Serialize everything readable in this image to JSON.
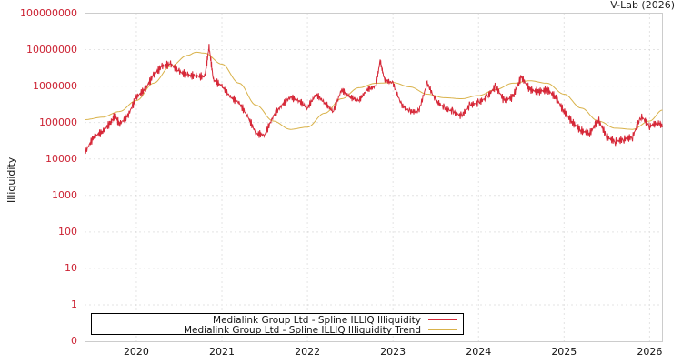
{
  "credit": "V-Lab (2026)",
  "colors": {
    "illiquidity": "#d62838",
    "trend": "#d9b24a",
    "axis": "#cccccc",
    "grid": "#c8c8c8",
    "ytick": "#cc2233"
  },
  "legend": {
    "items": [
      {
        "label": "Medialink Group Ltd - Spline ILLIQ Illiquidity",
        "color": "#d62838"
      },
      {
        "label": "Medialink Group Ltd - Spline ILLIQ Illiquidity Trend",
        "color": "#d9b24a"
      }
    ]
  },
  "chart_data": {
    "type": "line",
    "title": "",
    "xlabel": "",
    "ylabel": "Illiquidity",
    "yscale": "log",
    "ylim": [
      0,
      100000000
    ],
    "yticks": [
      "100000000",
      "10000000",
      "1000000",
      "100000",
      "10000",
      "1000",
      "100",
      "10",
      "1",
      "0"
    ],
    "xticks": [
      "2020",
      "2021",
      "2022",
      "2023",
      "2024",
      "2025",
      "2026"
    ],
    "xlim": [
      2019.4,
      2026.15
    ],
    "grid": true,
    "legend_position": "bottom-left inside",
    "series": [
      {
        "name": "Medialink Group Ltd - Spline ILLIQ Illiquidity",
        "x": [
          2019.4,
          2019.5,
          2019.6,
          2019.7,
          2019.75,
          2019.8,
          2019.9,
          2020.0,
          2020.1,
          2020.2,
          2020.3,
          2020.4,
          2020.5,
          2020.6,
          2020.7,
          2020.8,
          2020.85,
          2020.9,
          2021.0,
          2021.1,
          2021.2,
          2021.3,
          2021.4,
          2021.5,
          2021.6,
          2021.7,
          2021.8,
          2021.9,
          2022.0,
          2022.1,
          2022.2,
          2022.3,
          2022.4,
          2022.5,
          2022.6,
          2022.7,
          2022.8,
          2022.85,
          2022.9,
          2023.0,
          2023.1,
          2023.2,
          2023.3,
          2023.4,
          2023.5,
          2023.6,
          2023.7,
          2023.8,
          2023.9,
          2024.0,
          2024.1,
          2024.2,
          2024.3,
          2024.4,
          2024.5,
          2024.6,
          2024.7,
          2024.8,
          2024.9,
          2025.0,
          2025.1,
          2025.2,
          2025.3,
          2025.4,
          2025.5,
          2025.6,
          2025.7,
          2025.8,
          2025.9,
          2026.0,
          2026.1,
          2026.15
        ],
        "values": [
          15000,
          40000,
          55000,
          100000,
          160000,
          90000,
          150000,
          500000,
          800000,
          2000000,
          3500000,
          4000000,
          2500000,
          2000000,
          1900000,
          1800000,
          12000000,
          1500000,
          1000000,
          500000,
          350000,
          150000,
          50000,
          45000,
          150000,
          300000,
          500000,
          400000,
          250000,
          600000,
          350000,
          200000,
          800000,
          500000,
          400000,
          800000,
          1000000,
          5000000,
          1500000,
          1200000,
          300000,
          200000,
          200000,
          1200000,
          400000,
          250000,
          200000,
          150000,
          300000,
          350000,
          500000,
          1000000,
          400000,
          500000,
          1800000,
          800000,
          700000,
          800000,
          500000,
          200000,
          100000,
          60000,
          50000,
          120000,
          40000,
          30000,
          35000,
          40000,
          150000,
          80000,
          100000,
          80000
        ]
      },
      {
        "name": "Medialink Group Ltd - Spline ILLIQ Illiquidity Trend",
        "x": [
          2019.4,
          2019.6,
          2019.8,
          2020.0,
          2020.2,
          2020.4,
          2020.6,
          2020.7,
          2020.8,
          2021.0,
          2021.2,
          2021.4,
          2021.6,
          2021.8,
          2022.0,
          2022.2,
          2022.4,
          2022.6,
          2022.8,
          2023.0,
          2023.2,
          2023.4,
          2023.6,
          2023.8,
          2024.0,
          2024.2,
          2024.4,
          2024.6,
          2024.8,
          2025.0,
          2025.2,
          2025.4,
          2025.6,
          2025.8,
          2026.0,
          2026.15
        ],
        "values": [
          120000,
          140000,
          200000,
          400000,
          1200000,
          3500000,
          7000000,
          8500000,
          8000000,
          4000000,
          1200000,
          300000,
          110000,
          65000,
          75000,
          180000,
          450000,
          900000,
          1200000,
          1250000,
          950000,
          600000,
          480000,
          450000,
          550000,
          800000,
          1200000,
          1400000,
          1200000,
          600000,
          250000,
          110000,
          70000,
          65000,
          110000,
          220000
        ]
      }
    ]
  }
}
